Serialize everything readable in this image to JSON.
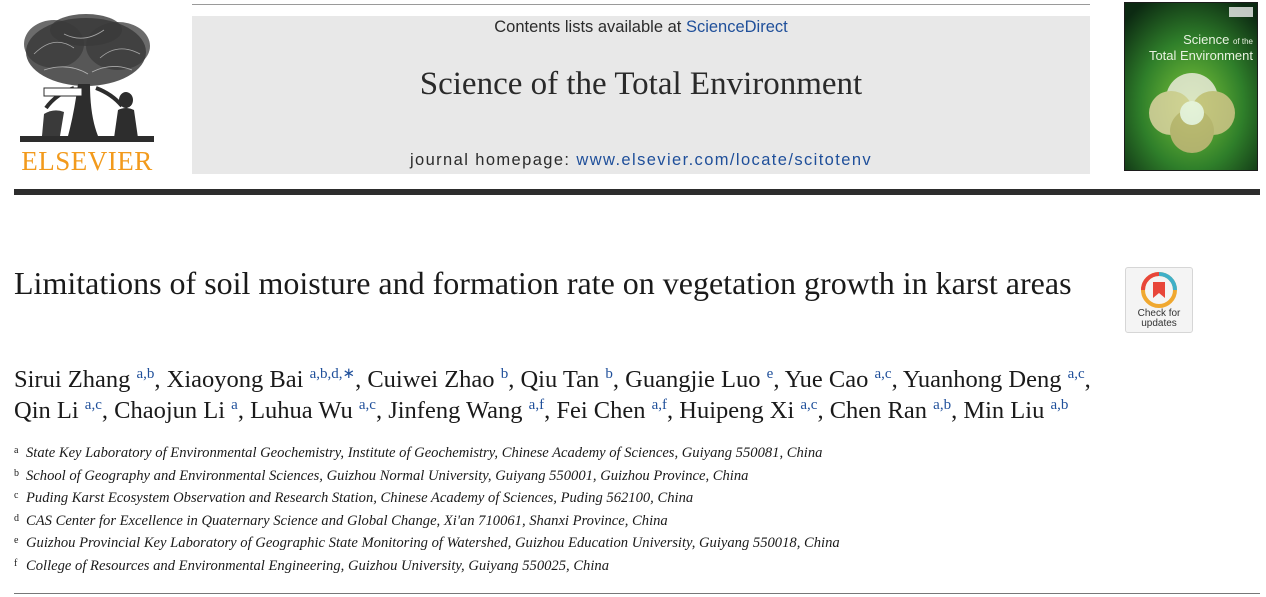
{
  "header": {
    "publisher_name": "ELSEVIER",
    "contents_prefix": "Contents lists available at ",
    "contents_link": "ScienceDirect",
    "journal_title": "Science of the Total Environment",
    "homepage_prefix": "journal homepage: ",
    "homepage_url": "www.elsevier.com/locate/scitotenv",
    "cover": {
      "title_line1": "Science",
      "title_of_the": "of the",
      "title_line2": "Total Environment"
    }
  },
  "article": {
    "title": "Limitations of soil moisture and formation rate on vegetation growth in karst areas",
    "check_updates_line1": "Check for",
    "check_updates_line2": "updates"
  },
  "authors": [
    {
      "name": "Sirui Zhang",
      "sup": "a,b"
    },
    {
      "name": "Xiaoyong Bai",
      "sup": "a,b,d,∗"
    },
    {
      "name": "Cuiwei Zhao",
      "sup": "b"
    },
    {
      "name": "Qiu Tan",
      "sup": "b"
    },
    {
      "name": "Guangjie Luo",
      "sup": "e"
    },
    {
      "name": "Yue Cao",
      "sup": "a,c"
    },
    {
      "name": "Yuanhong Deng",
      "sup": "a,c"
    },
    {
      "name": "Qin Li",
      "sup": "a,c"
    },
    {
      "name": "Chaojun Li",
      "sup": "a"
    },
    {
      "name": "Luhua Wu",
      "sup": "a,c"
    },
    {
      "name": "Jinfeng Wang",
      "sup": "a,f"
    },
    {
      "name": "Fei Chen",
      "sup": "a,f"
    },
    {
      "name": "Huipeng Xi",
      "sup": "a,c"
    },
    {
      "name": "Chen Ran",
      "sup": "a,b"
    },
    {
      "name": "Min Liu",
      "sup": "a,b"
    }
  ],
  "affiliations": [
    {
      "mark": "a",
      "text": "State Key Laboratory of Environmental Geochemistry, Institute of Geochemistry, Chinese Academy of Sciences, Guiyang 550081, China"
    },
    {
      "mark": "b",
      "text": "School of Geography and Environmental Sciences, Guizhou Normal University, Guiyang 550001, Guizhou Province, China"
    },
    {
      "mark": "c",
      "text": "Puding Karst Ecosystem Observation and Research Station, Chinese Academy of Sciences, Puding 562100, China"
    },
    {
      "mark": "d",
      "text": "CAS Center for Excellence in Quaternary Science and Global Change, Xi'an 710061, Shanxi Province, China"
    },
    {
      "mark": "e",
      "text": "Guizhou Provincial Key Laboratory of Geographic State Monitoring of Watershed, Guizhou Education University, Guiyang 550018, China"
    },
    {
      "mark": "f",
      "text": "College of Resources and Environmental Engineering, Guizhou University, Guiyang 550025, China"
    }
  ],
  "colors": {
    "publisher_orange": "#f29a1c",
    "link_blue": "#1f4f9a",
    "banner_gray": "#e8e8e8"
  }
}
